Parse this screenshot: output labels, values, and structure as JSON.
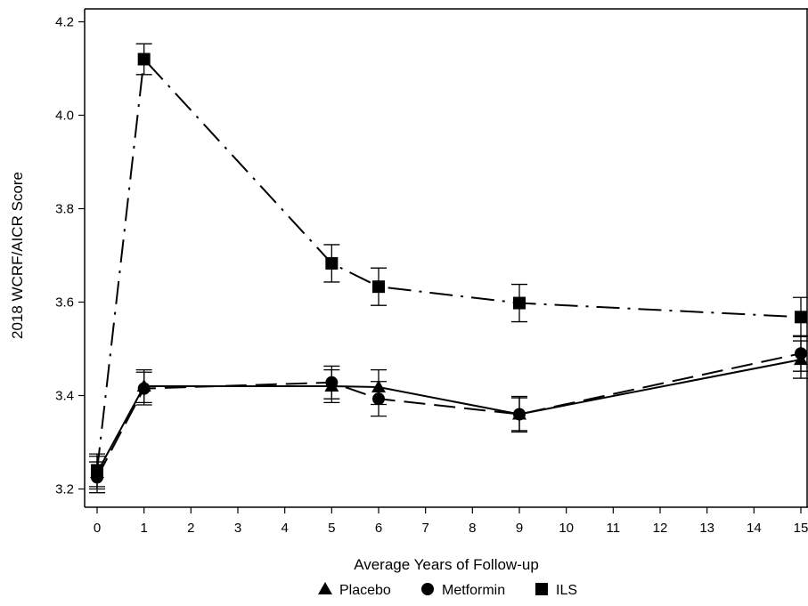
{
  "chart_data": {
    "type": "line",
    "xlabel": "Average Years of Follow-up",
    "ylabel": "2018 WCRF/AICR Score",
    "xlim": [
      0,
      15
    ],
    "ylim": [
      3.17,
      4.23
    ],
    "xticks": [
      "0",
      "1",
      "2",
      "3",
      "4",
      "5",
      "6",
      "7",
      "8",
      "9",
      "10",
      "11",
      "12",
      "13",
      "14",
      "15"
    ],
    "yticks": [
      "3.2",
      "3.4",
      "3.6",
      "3.8",
      "4.0",
      "4.2"
    ],
    "grid": false,
    "legend_position": "bottom",
    "series": [
      {
        "name": "Placebo",
        "marker": "triangle",
        "dash": "solid",
        "x": [
          0,
          1,
          5,
          6,
          9,
          15
        ],
        "y": [
          3.235,
          3.42,
          3.42,
          3.418,
          3.36,
          3.477
        ],
        "err": [
          0.035,
          0.035,
          0.035,
          0.037,
          0.035,
          0.04
        ]
      },
      {
        "name": "Metformin",
        "marker": "circle",
        "dash": "long-dash",
        "x": [
          0,
          1,
          5,
          6,
          9,
          15
        ],
        "y": [
          3.225,
          3.415,
          3.428,
          3.393,
          3.36,
          3.49
        ],
        "err": [
          0.033,
          0.035,
          0.035,
          0.037,
          0.038,
          0.038
        ]
      },
      {
        "name": "ILS",
        "marker": "square",
        "dash": "dash-dot",
        "x": [
          0,
          1,
          5,
          6,
          9,
          15
        ],
        "y": [
          3.24,
          4.12,
          3.683,
          3.633,
          3.598,
          3.568
        ],
        "err": [
          0.035,
          0.033,
          0.04,
          0.04,
          0.04,
          0.042
        ]
      }
    ]
  }
}
